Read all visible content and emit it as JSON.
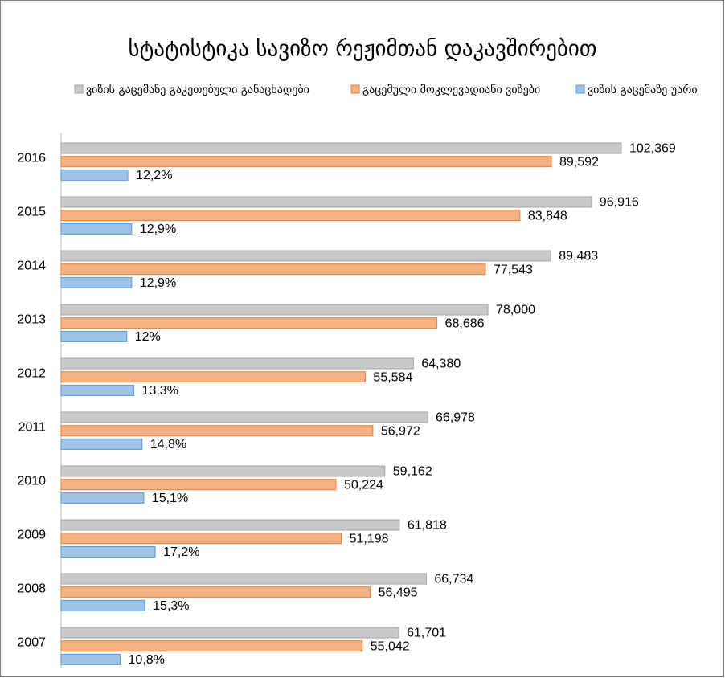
{
  "chart_data": {
    "type": "hbar",
    "title": "სტატისტიკა სავიზო რეჟიმთან დაკავშირებით",
    "categories": [
      "2016",
      "2015",
      "2014",
      "2013",
      "2012",
      "2011",
      "2010",
      "2009",
      "2008",
      "2007"
    ],
    "xlim": [
      0,
      120000
    ],
    "x2lim": [
      0,
      120
    ],
    "legend": "top",
    "series": [
      {
        "name": "ვიზის გაცემაზე გაკეთებული განაცხადები",
        "color": "#c9c9c9",
        "edgecolor": "#a5a5a5",
        "values": [
          102369,
          96916,
          89483,
          78000,
          64380,
          66978,
          59162,
          61818,
          66734,
          61701
        ],
        "value_labels": [
          "102,369",
          "96,916",
          "89,483",
          "78,000",
          "64,380",
          "66,978",
          "59,162",
          "61,818",
          "66,734",
          "61,701"
        ]
      },
      {
        "name": "გაცემული მოკლევადიანი ვიზები",
        "color": "#f4b183",
        "edgecolor": "#ed7d31",
        "values": [
          89592,
          83848,
          77543,
          68686,
          55584,
          56972,
          50224,
          51198,
          56495,
          55042
        ],
        "value_labels": [
          "89,592",
          "83,848",
          "77,543",
          "68,686",
          "55,584",
          "56,972",
          "50,224",
          "51,198",
          "56,495",
          "55,042"
        ]
      },
      {
        "name": "ვიზის გაცემაზე უარი",
        "color": "#9dc3e6",
        "edgecolor": "#5b9bd5",
        "axis": "x2",
        "values": [
          12.2,
          12.9,
          12.9,
          12,
          13.3,
          14.8,
          15.1,
          17.2,
          15.3,
          10.8
        ],
        "value_labels": [
          "12,2%",
          "12,9%",
          "12,9%",
          "12%",
          "13,3%",
          "14,8%",
          "15,1%",
          "17,2%",
          "15,3%",
          "10,8%"
        ]
      }
    ]
  }
}
